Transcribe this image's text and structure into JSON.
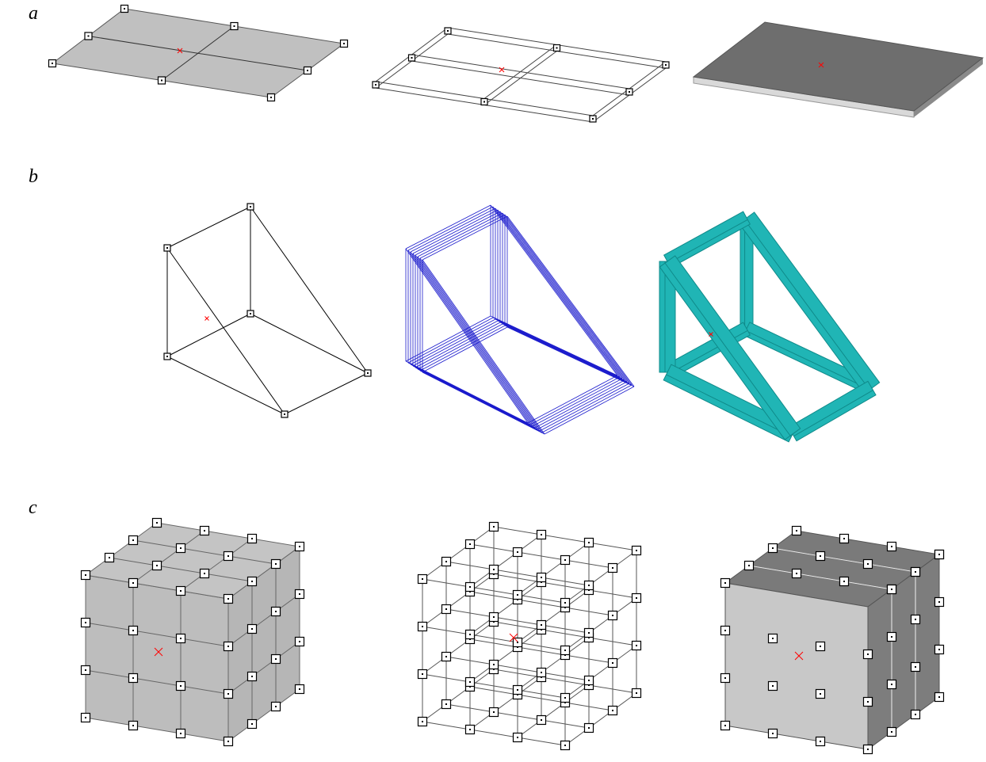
{
  "labels": {
    "a": "a",
    "b": "b",
    "c": "c"
  },
  "panels": [
    {
      "id": "a",
      "views": [
        "shell-surface-grid",
        "shell-wireframe-grid",
        "shell-solid-plate"
      ]
    },
    {
      "id": "b",
      "views": [
        "frame-line-model",
        "frame-wireframe-sections",
        "frame-solid-sections"
      ]
    },
    {
      "id": "c",
      "views": [
        "solid-cube-surface-grid",
        "solid-cube-wireframe-grid",
        "solid-cube-layered"
      ]
    }
  ],
  "colors": {
    "line": "#000000",
    "node_marker": "#000000",
    "centroid": "#ff0000",
    "surface_light": "#c0c0c0",
    "surface_mid": "#bdbdbd",
    "surface_dark": "#7d7d7d",
    "plate_top": "#6e6e6e",
    "plate_edge": "#d9d9d9",
    "wire_blue": "#1a1acc",
    "solid_teal": "#20b5b5",
    "solid_teal_dark": "#0f8a8a"
  },
  "icons": {
    "node": "square-node-icon",
    "centroid": "centroid-x-icon"
  }
}
